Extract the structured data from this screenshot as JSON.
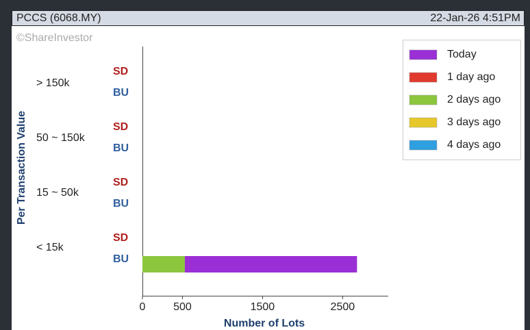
{
  "header": {
    "title": "PCCS (6068.MY)",
    "timestamp": "22-Jan-26 4:51PM"
  },
  "chart_data": {
    "type": "stacked-bar-horizontal",
    "watermark": "©ShareInvestor",
    "ylabel": "Per Transaction Value",
    "xlabel": "Number of Lots",
    "categories": [
      "> 150k",
      "50 ~ 150k",
      "15 ~ 50k",
      "< 15k"
    ],
    "subcategories": [
      "SD",
      "BU"
    ],
    "subcategory_colors": [
      "#b0201e",
      "#2f5f9e"
    ],
    "series": [
      {
        "name": "Today",
        "color": "#9a2fd6",
        "values": [
          [
            0,
            0
          ],
          [
            0,
            0
          ],
          [
            0,
            0
          ],
          [
            0,
            2150
          ]
        ]
      },
      {
        "name": "1 day ago",
        "color": "#e03a2e",
        "values": [
          [
            0,
            0
          ],
          [
            0,
            0
          ],
          [
            0,
            0
          ],
          [
            0,
            0
          ]
        ]
      },
      {
        "name": "2 days ago",
        "color": "#8cc63e",
        "values": [
          [
            0,
            0
          ],
          [
            0,
            0
          ],
          [
            0,
            0
          ],
          [
            0,
            530
          ]
        ]
      },
      {
        "name": "3 days ago",
        "color": "#e6c82a",
        "values": [
          [
            0,
            0
          ],
          [
            0,
            0
          ],
          [
            0,
            0
          ],
          [
            0,
            0
          ]
        ]
      },
      {
        "name": "4 days ago",
        "color": "#2e9fe0",
        "values": [
          [
            0,
            0
          ],
          [
            0,
            0
          ],
          [
            0,
            0
          ],
          [
            0,
            0
          ]
        ]
      }
    ],
    "xlim": [
      0,
      3070
    ],
    "xticks": [
      0,
      500,
      1500,
      2500
    ],
    "legend": "top-right"
  }
}
